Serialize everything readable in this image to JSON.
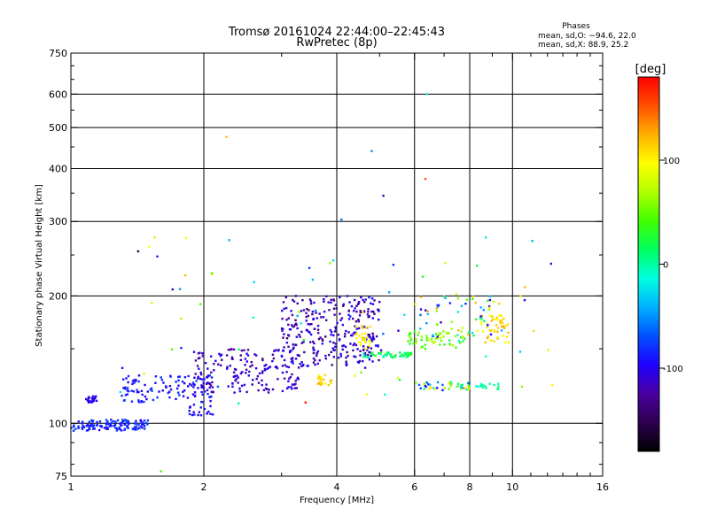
{
  "chart_data": {
    "type": "scatter",
    "title": "Tromsø 20161024 22:44:00–22:45:43",
    "subtitle": "RwPretec (8p)",
    "xlabel": "Frequency [MHz]",
    "ylabel": "Stationary phase Virtual Height [km]",
    "x_scale": "log",
    "y_scale": "log",
    "xlim": [
      1,
      16
    ],
    "ylim": [
      75,
      750
    ],
    "x_ticks": [
      1,
      2,
      4,
      6,
      8,
      10,
      16
    ],
    "y_ticks": [
      75,
      100,
      200,
      300,
      400,
      500,
      600,
      750
    ],
    "grid": true,
    "phases": {
      "title": "Phases",
      "line_o": "mean, sd,O: −94.6, 22.0",
      "line_x": "mean, sd,X:  88.9, 25.2"
    },
    "colorbar": {
      "label": "[deg]",
      "range": [
        -180,
        180
      ],
      "ticks": [
        100,
        0,
        -100
      ],
      "colors": [
        "#000000",
        "#2d004f",
        "#4a00a0",
        "#2000ff",
        "#0050ff",
        "#00b0ff",
        "#00ffe0",
        "#00ff60",
        "#40ff00",
        "#b0ff00",
        "#ffff00",
        "#ffb000",
        "#ff5000",
        "#ff0000"
      ]
    },
    "clusters": [
      {
        "f": [
          1.0,
          1.5
        ],
        "h": [
          96,
          102
        ],
        "phase": [
          -100,
          -70
        ],
        "n": 130
      },
      {
        "f": [
          1.08,
          1.15
        ],
        "h": [
          112,
          116
        ],
        "phase": [
          -110,
          -95
        ],
        "n": 22
      },
      {
        "f": [
          1.3,
          2.1
        ],
        "h": [
          112,
          130
        ],
        "phase": [
          -105,
          -75
        ],
        "n": 110
      },
      {
        "f": [
          1.85,
          2.1
        ],
        "h": [
          104,
          110
        ],
        "phase": [
          -105,
          -85
        ],
        "n": 18
      },
      {
        "f": [
          1.9,
          3.3
        ],
        "h": [
          118,
          150
        ],
        "phase": [
          -130,
          -95
        ],
        "n": 170
      },
      {
        "f": [
          3.0,
          5.0
        ],
        "h": [
          135,
          200
        ],
        "phase": [
          -140,
          -90
        ],
        "n": 300
      },
      {
        "f": [
          3.6,
          3.9
        ],
        "h": [
          123,
          130
        ],
        "phase": [
          90,
          125
        ],
        "n": 25
      },
      {
        "f": [
          4.4,
          4.8
        ],
        "h": [
          150,
          170
        ],
        "phase": [
          80,
          120
        ],
        "n": 25
      },
      {
        "f": [
          4.6,
          5.9
        ],
        "h": [
          143,
          147
        ],
        "phase": [
          -20,
          40
        ],
        "n": 55
      },
      {
        "f": [
          5.8,
          7.8
        ],
        "h": [
          150,
          165
        ],
        "phase": [
          20,
          80
        ],
        "n": 60
      },
      {
        "f": [
          6.0,
          8.0
        ],
        "h": [
          120,
          125
        ],
        "phase": [
          -110,
          120
        ],
        "n": 40
      },
      {
        "f": [
          8.2,
          9.5
        ],
        "h": [
          120,
          124
        ],
        "phase": [
          -20,
          20
        ],
        "n": 15
      },
      {
        "f": [
          8.5,
          9.8
        ],
        "h": [
          155,
          180
        ],
        "phase": [
          90,
          130
        ],
        "n": 45
      },
      {
        "f": [
          6.0,
          9.5
        ],
        "h": [
          160,
          200
        ],
        "phase": [
          -130,
          130
        ],
        "n": 60
      },
      {
        "f": [
          1.2,
          12.5
        ],
        "h": [
          110,
          280
        ],
        "phase": [
          -120,
          130
        ],
        "n": 70
      }
    ],
    "isolated_points": [
      {
        "f": 1.42,
        "h": 255,
        "phase": -150
      },
      {
        "f": 2.25,
        "h": 475,
        "phase": 120
      },
      {
        "f": 4.1,
        "h": 303,
        "phase": -60
      },
      {
        "f": 4.8,
        "h": 440,
        "phase": -50
      },
      {
        "f": 5.1,
        "h": 345,
        "phase": -120
      },
      {
        "f": 6.35,
        "h": 378,
        "phase": 150
      },
      {
        "f": 6.4,
        "h": 600,
        "phase": -20
      },
      {
        "f": 8.7,
        "h": 275,
        "phase": -20
      },
      {
        "f": 1.6,
        "h": 77,
        "phase": 40
      },
      {
        "f": 3.4,
        "h": 112,
        "phase": 170
      },
      {
        "f": 10.5,
        "h": 122,
        "phase": 60
      },
      {
        "f": 12.3,
        "h": 123,
        "phase": 100
      }
    ]
  }
}
